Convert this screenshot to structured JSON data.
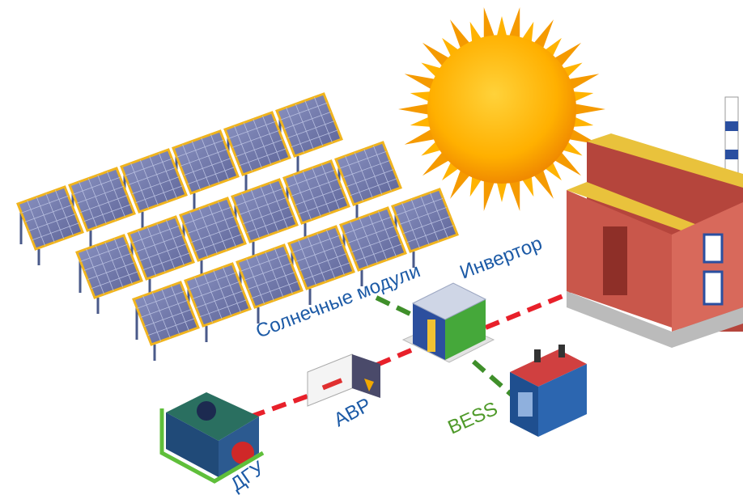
{
  "labels": {
    "solar_modules": "Солнечные модули",
    "inverter": "Инвертор",
    "avr": "АВР",
    "dgu": "ДГУ",
    "bess": "BESS"
  }
}
